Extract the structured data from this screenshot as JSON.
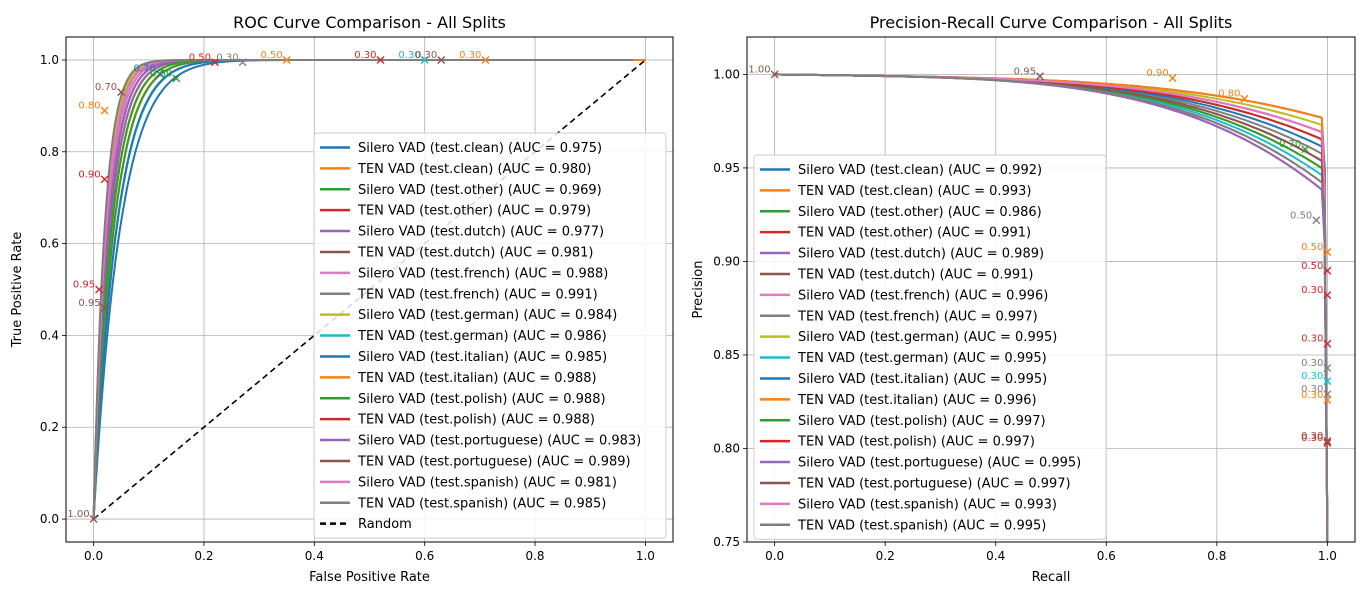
{
  "chart_data": [
    {
      "type": "line",
      "title": "ROC Curve Comparison - All Splits",
      "xlabel": "False Positive Rate",
      "ylabel": "True Positive Rate",
      "xlim": [
        -0.05,
        1.05
      ],
      "ylim": [
        -0.05,
        1.05
      ],
      "xticks": [
        "0.0",
        "0.2",
        "0.4",
        "0.6",
        "0.8",
        "1.0"
      ],
      "yticks": [
        "0.0",
        "0.2",
        "0.4",
        "0.6",
        "0.8",
        "1.0"
      ],
      "grid": true,
      "legend_position": "center-right",
      "series": [
        {
          "name": "Silero VAD (test.clean) (AUC = 0.975)",
          "color": "#1f77b4"
        },
        {
          "name": "TEN VAD (test.clean) (AUC = 0.980)",
          "color": "#ff7f0e"
        },
        {
          "name": "Silero VAD (test.other) (AUC = 0.969)",
          "color": "#2ca02c"
        },
        {
          "name": "TEN VAD (test.other) (AUC = 0.979)",
          "color": "#d62728"
        },
        {
          "name": "Silero VAD (test.dutch) (AUC = 0.977)",
          "color": "#9467bd"
        },
        {
          "name": "TEN VAD (test.dutch) (AUC = 0.981)",
          "color": "#8c564b"
        },
        {
          "name": "Silero VAD (test.french) (AUC = 0.988)",
          "color": "#e377c2"
        },
        {
          "name": "TEN VAD (test.french) (AUC = 0.991)",
          "color": "#7f7f7f"
        },
        {
          "name": "Silero VAD (test.german) (AUC = 0.984)",
          "color": "#bcbd22"
        },
        {
          "name": "TEN VAD (test.german) (AUC = 0.986)",
          "color": "#17becf"
        },
        {
          "name": "Silero VAD (test.italian) (AUC = 0.985)",
          "color": "#1f77b4"
        },
        {
          "name": "TEN VAD (test.italian) (AUC = 0.988)",
          "color": "#ff7f0e"
        },
        {
          "name": "Silero VAD (test.polish) (AUC = 0.988)",
          "color": "#2ca02c"
        },
        {
          "name": "TEN VAD (test.polish) (AUC = 0.988)",
          "color": "#d62728"
        },
        {
          "name": "Silero VAD (test.portuguese) (AUC = 0.983)",
          "color": "#9467bd"
        },
        {
          "name": "TEN VAD (test.portuguese) (AUC = 0.989)",
          "color": "#8c564b"
        },
        {
          "name": "Silero VAD (test.spanish) (AUC = 0.981)",
          "color": "#e377c2"
        },
        {
          "name": "TEN VAD (test.spanish) (AUC = 0.985)",
          "color": "#7f7f7f"
        }
      ],
      "reference_line": {
        "name": "Random",
        "x": [
          0,
          1
        ],
        "y": [
          0,
          1
        ],
        "color": "#000000",
        "style": "dashed"
      },
      "markers": [
        {
          "x": 0.0,
          "y": 0.0,
          "label": "1.00",
          "color": "#8c564b"
        },
        {
          "x": 0.52,
          "y": 1.0,
          "label": "0.30",
          "color": "#d62728"
        },
        {
          "x": 0.6,
          "y": 1.0,
          "label": "0.30",
          "color": "#17becf"
        },
        {
          "x": 0.63,
          "y": 1.0,
          "label": "0.30",
          "color": "#8c564b"
        },
        {
          "x": 0.71,
          "y": 1.0,
          "label": "0.30",
          "color": "#ff7f0e"
        },
        {
          "x": 0.35,
          "y": 1.0,
          "label": "0.50",
          "color": "#ff7f0e"
        },
        {
          "x": 0.22,
          "y": 0.995,
          "label": "0.50",
          "color": "#d62728"
        },
        {
          "x": 0.02,
          "y": 0.46,
          "label": "0.95",
          "color": "#8c564b"
        },
        {
          "x": 0.01,
          "y": 0.5,
          "label": "0.95",
          "color": "#d62728"
        },
        {
          "x": 0.02,
          "y": 0.74,
          "label": "0.90",
          "color": "#d62728"
        },
        {
          "x": 0.02,
          "y": 0.89,
          "label": "0.80",
          "color": "#ff7f0e"
        },
        {
          "x": 0.05,
          "y": 0.93,
          "label": "0.70",
          "color": "#8c564b"
        },
        {
          "x": 0.12,
          "y": 0.97,
          "label": "0.70",
          "color": "#1f77b4"
        },
        {
          "x": 0.15,
          "y": 0.96,
          "label": "0.50",
          "color": "#2ca02c"
        },
        {
          "x": 0.27,
          "y": 0.995,
          "label": "0.30",
          "color": "#7f7f7f"
        }
      ]
    },
    {
      "type": "line",
      "title": "Precision-Recall Curve Comparison - All Splits",
      "xlabel": "Recall",
      "ylabel": "Precision",
      "xlim": [
        -0.05,
        1.05
      ],
      "ylim": [
        0.75,
        1.02
      ],
      "xticks": [
        "0.0",
        "0.2",
        "0.4",
        "0.6",
        "0.8",
        "1.0"
      ],
      "yticks": [
        "0.75",
        "0.80",
        "0.85",
        "0.90",
        "0.95",
        "1.00"
      ],
      "grid": true,
      "legend_position": "lower-left",
      "series": [
        {
          "name": "Silero VAD (test.clean) (AUC = 0.992)",
          "color": "#1f77b4"
        },
        {
          "name": "TEN VAD (test.clean) (AUC = 0.993)",
          "color": "#ff7f0e"
        },
        {
          "name": "Silero VAD (test.other) (AUC = 0.986)",
          "color": "#2ca02c"
        },
        {
          "name": "TEN VAD (test.other) (AUC = 0.991)",
          "color": "#d62728"
        },
        {
          "name": "Silero VAD (test.dutch) (AUC = 0.989)",
          "color": "#9467bd"
        },
        {
          "name": "TEN VAD (test.dutch) (AUC = 0.991)",
          "color": "#8c564b"
        },
        {
          "name": "Silero VAD (test.french) (AUC = 0.996)",
          "color": "#e377c2"
        },
        {
          "name": "TEN VAD (test.french) (AUC = 0.997)",
          "color": "#7f7f7f"
        },
        {
          "name": "Silero VAD (test.german) (AUC = 0.995)",
          "color": "#bcbd22"
        },
        {
          "name": "TEN VAD (test.german) (AUC = 0.995)",
          "color": "#17becf"
        },
        {
          "name": "Silero VAD (test.italian) (AUC = 0.995)",
          "color": "#1f77b4"
        },
        {
          "name": "TEN VAD (test.italian) (AUC = 0.996)",
          "color": "#ff7f0e"
        },
        {
          "name": "Silero VAD (test.polish) (AUC = 0.997)",
          "color": "#2ca02c"
        },
        {
          "name": "TEN VAD (test.polish) (AUC = 0.997)",
          "color": "#d62728"
        },
        {
          "name": "Silero VAD (test.portuguese) (AUC = 0.995)",
          "color": "#9467bd"
        },
        {
          "name": "TEN VAD (test.portuguese) (AUC = 0.997)",
          "color": "#8c564b"
        },
        {
          "name": "Silero VAD (test.spanish) (AUC = 0.993)",
          "color": "#e377c2"
        },
        {
          "name": "TEN VAD (test.spanish) (AUC = 0.995)",
          "color": "#7f7f7f"
        }
      ],
      "markers": [
        {
          "x": 0.0,
          "y": 1.0,
          "label": "1.00",
          "color": "#8c564b"
        },
        {
          "x": 1.0,
          "y": 0.856,
          "label": "0.30",
          "color": "#d62728"
        },
        {
          "x": 1.0,
          "y": 0.843,
          "label": "0.30",
          "color": "#7f7f7f"
        },
        {
          "x": 1.0,
          "y": 0.836,
          "label": "0.30",
          "color": "#17becf"
        },
        {
          "x": 1.0,
          "y": 0.829,
          "label": "0.30",
          "color": "#7f7f7f"
        },
        {
          "x": 1.0,
          "y": 0.826,
          "label": "0.30",
          "color": "#ff7f0e"
        },
        {
          "x": 1.0,
          "y": 0.804,
          "label": "0.30",
          "color": "#8c564b"
        },
        {
          "x": 1.0,
          "y": 0.803,
          "label": "0.30",
          "color": "#d62728"
        },
        {
          "x": 1.0,
          "y": 0.882,
          "label": "0.30",
          "color": "#d62728"
        },
        {
          "x": 1.0,
          "y": 0.895,
          "label": "0.50",
          "color": "#d62728"
        },
        {
          "x": 1.0,
          "y": 0.905,
          "label": "0.50",
          "color": "#ff7f0e"
        },
        {
          "x": 0.98,
          "y": 0.922,
          "label": "0.50",
          "color": "#7f7f7f"
        },
        {
          "x": 0.96,
          "y": 0.96,
          "label": "0.70",
          "color": "#2ca02c"
        },
        {
          "x": 0.85,
          "y": 0.987,
          "label": "0.80",
          "color": "#ff7f0e"
        },
        {
          "x": 0.72,
          "y": 0.998,
          "label": "0.90",
          "color": "#ff7f0e"
        },
        {
          "x": 0.48,
          "y": 0.999,
          "label": "0.95",
          "color": "#8c564b"
        }
      ]
    }
  ]
}
